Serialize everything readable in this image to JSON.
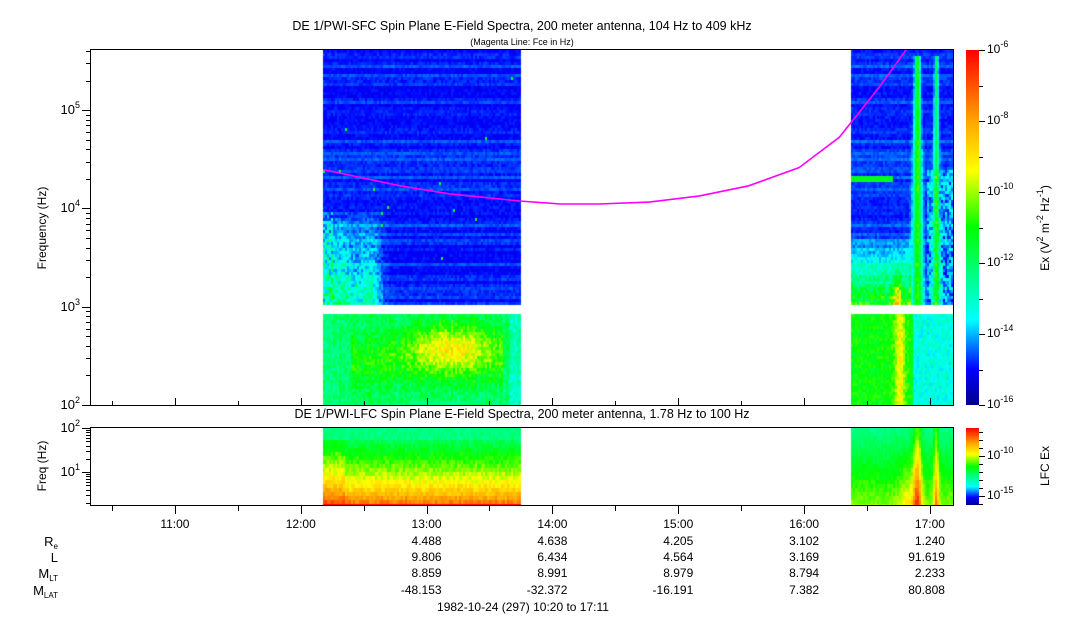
{
  "chart_data": {
    "type": "heatmap",
    "panels": [
      {
        "id": "sfc",
        "title": "DE 1/PWI-SFC  Spin Plane E-Field Spectra, 200 meter antenna, 104 Hz to 409 kHz",
        "subtitle": "(Magenta Line: Fce in Hz)",
        "ylabel": "Frequency (Hz)",
        "yscale": "log",
        "ylim": [
          100,
          409000
        ],
        "yticks": [
          {
            "base": "10",
            "exp": "2",
            "v": 100
          },
          {
            "base": "10",
            "exp": "3",
            "v": 1000
          },
          {
            "base": "10",
            "exp": "4",
            "v": 10000
          },
          {
            "base": "10",
            "exp": "5",
            "v": 100000
          }
        ],
        "data_gap_hz": [
          850,
          1050
        ],
        "colorbar": {
          "label_parts": [
            [
              "Ex (V",
              ""
            ],
            [
              "2",
              "sup"
            ],
            [
              " m",
              ""
            ],
            [
              "-2",
              "sup"
            ],
            [
              " Hz",
              ""
            ],
            [
              "-1",
              "sup"
            ],
            [
              ")",
              ""
            ]
          ],
          "range_log10": [
            -16,
            -6
          ],
          "ticks": [
            {
              "base": "10",
              "exp": "-6",
              "v": -6
            },
            {
              "base": "10",
              "exp": "-8",
              "v": -8
            },
            {
              "base": "10",
              "exp": "-10",
              "v": -10
            },
            {
              "base": "10",
              "exp": "-12",
              "v": -12
            },
            {
              "base": "10",
              "exp": "-14",
              "v": -14
            },
            {
              "base": "10",
              "exp": "-16",
              "v": -16
            }
          ]
        },
        "fce_line": {
          "color": "#ff00ff",
          "points_hours_hz": [
            [
              12.18,
              24800
            ],
            [
              12.79,
              17000
            ],
            [
              13.18,
              14100
            ],
            [
              13.74,
              11900
            ],
            [
              14.06,
              11100
            ],
            [
              14.37,
              11100
            ],
            [
              14.77,
              11600
            ],
            [
              15.17,
              13400
            ],
            [
              15.56,
              17000
            ],
            [
              15.96,
              26000
            ],
            [
              16.28,
              52900
            ],
            [
              16.6,
              172700
            ],
            [
              16.83,
              445000
            ]
          ]
        }
      },
      {
        "id": "lfc",
        "title": "DE 1/PWI-LFC  Spin Plane E-Field Spectra, 200 meter antenna, 1.78 Hz to 100 Hz",
        "ylabel": "Freq (Hz)",
        "yscale": "log",
        "ylim": [
          1.78,
          100
        ],
        "yticks": [
          {
            "base": "10",
            "exp": "1",
            "v": 10
          },
          {
            "base": "10",
            "exp": "2",
            "v": 100
          }
        ],
        "colorbar": {
          "label_parts": [
            [
              "LFC Ex",
              ""
            ]
          ],
          "range_log10": [
            -16.1,
            -6.5
          ],
          "ticks": [
            {
              "base": "10",
              "exp": "-10",
              "v": -10
            },
            {
              "base": "10",
              "exp": "-15",
              "v": -15
            }
          ]
        }
      }
    ],
    "x_range_hours": [
      10.3333,
      17.1833
    ],
    "data_segments_hours": [
      [
        12.18,
        13.75
      ],
      [
        16.38,
        17.1833
      ]
    ],
    "xticks": [
      {
        "label": "11:00",
        "h": 11
      },
      {
        "label": "12:00",
        "h": 12
      },
      {
        "label": "13:00",
        "h": 13
      },
      {
        "label": "14:00",
        "h": 14
      },
      {
        "label": "15:00",
        "h": 15
      },
      {
        "label": "16:00",
        "h": 16
      },
      {
        "label": "17:00",
        "h": 17
      }
    ],
    "colormap": [
      "#00008b",
      "#0000ff",
      "#00ffff",
      "#00ff00",
      "#ffff00",
      "#ffa500",
      "#ff0000"
    ],
    "ephemeris": {
      "rows": [
        {
          "label": "R",
          "sub": "e",
          "values": [
            "4.488",
            "4.638",
            "4.205",
            "3.102",
            "1.240"
          ]
        },
        {
          "label": "L",
          "sub": "",
          "values": [
            "9.806",
            "6.434",
            "4.564",
            "3.169",
            "91.619"
          ]
        },
        {
          "label": "M",
          "sub": "LT",
          "values": [
            "8.859",
            "8.991",
            "8.979",
            "8.794",
            "2.233"
          ]
        },
        {
          "label": "M",
          "sub": "LAT",
          "values": [
            "-48.153",
            "-32.372",
            "-16.191",
            "7.382",
            "80.808"
          ]
        }
      ],
      "columns_hours": [
        13,
        14,
        15,
        16,
        17
      ]
    },
    "footer": "1982-10-24 (297) 10:20 to 17:11"
  }
}
